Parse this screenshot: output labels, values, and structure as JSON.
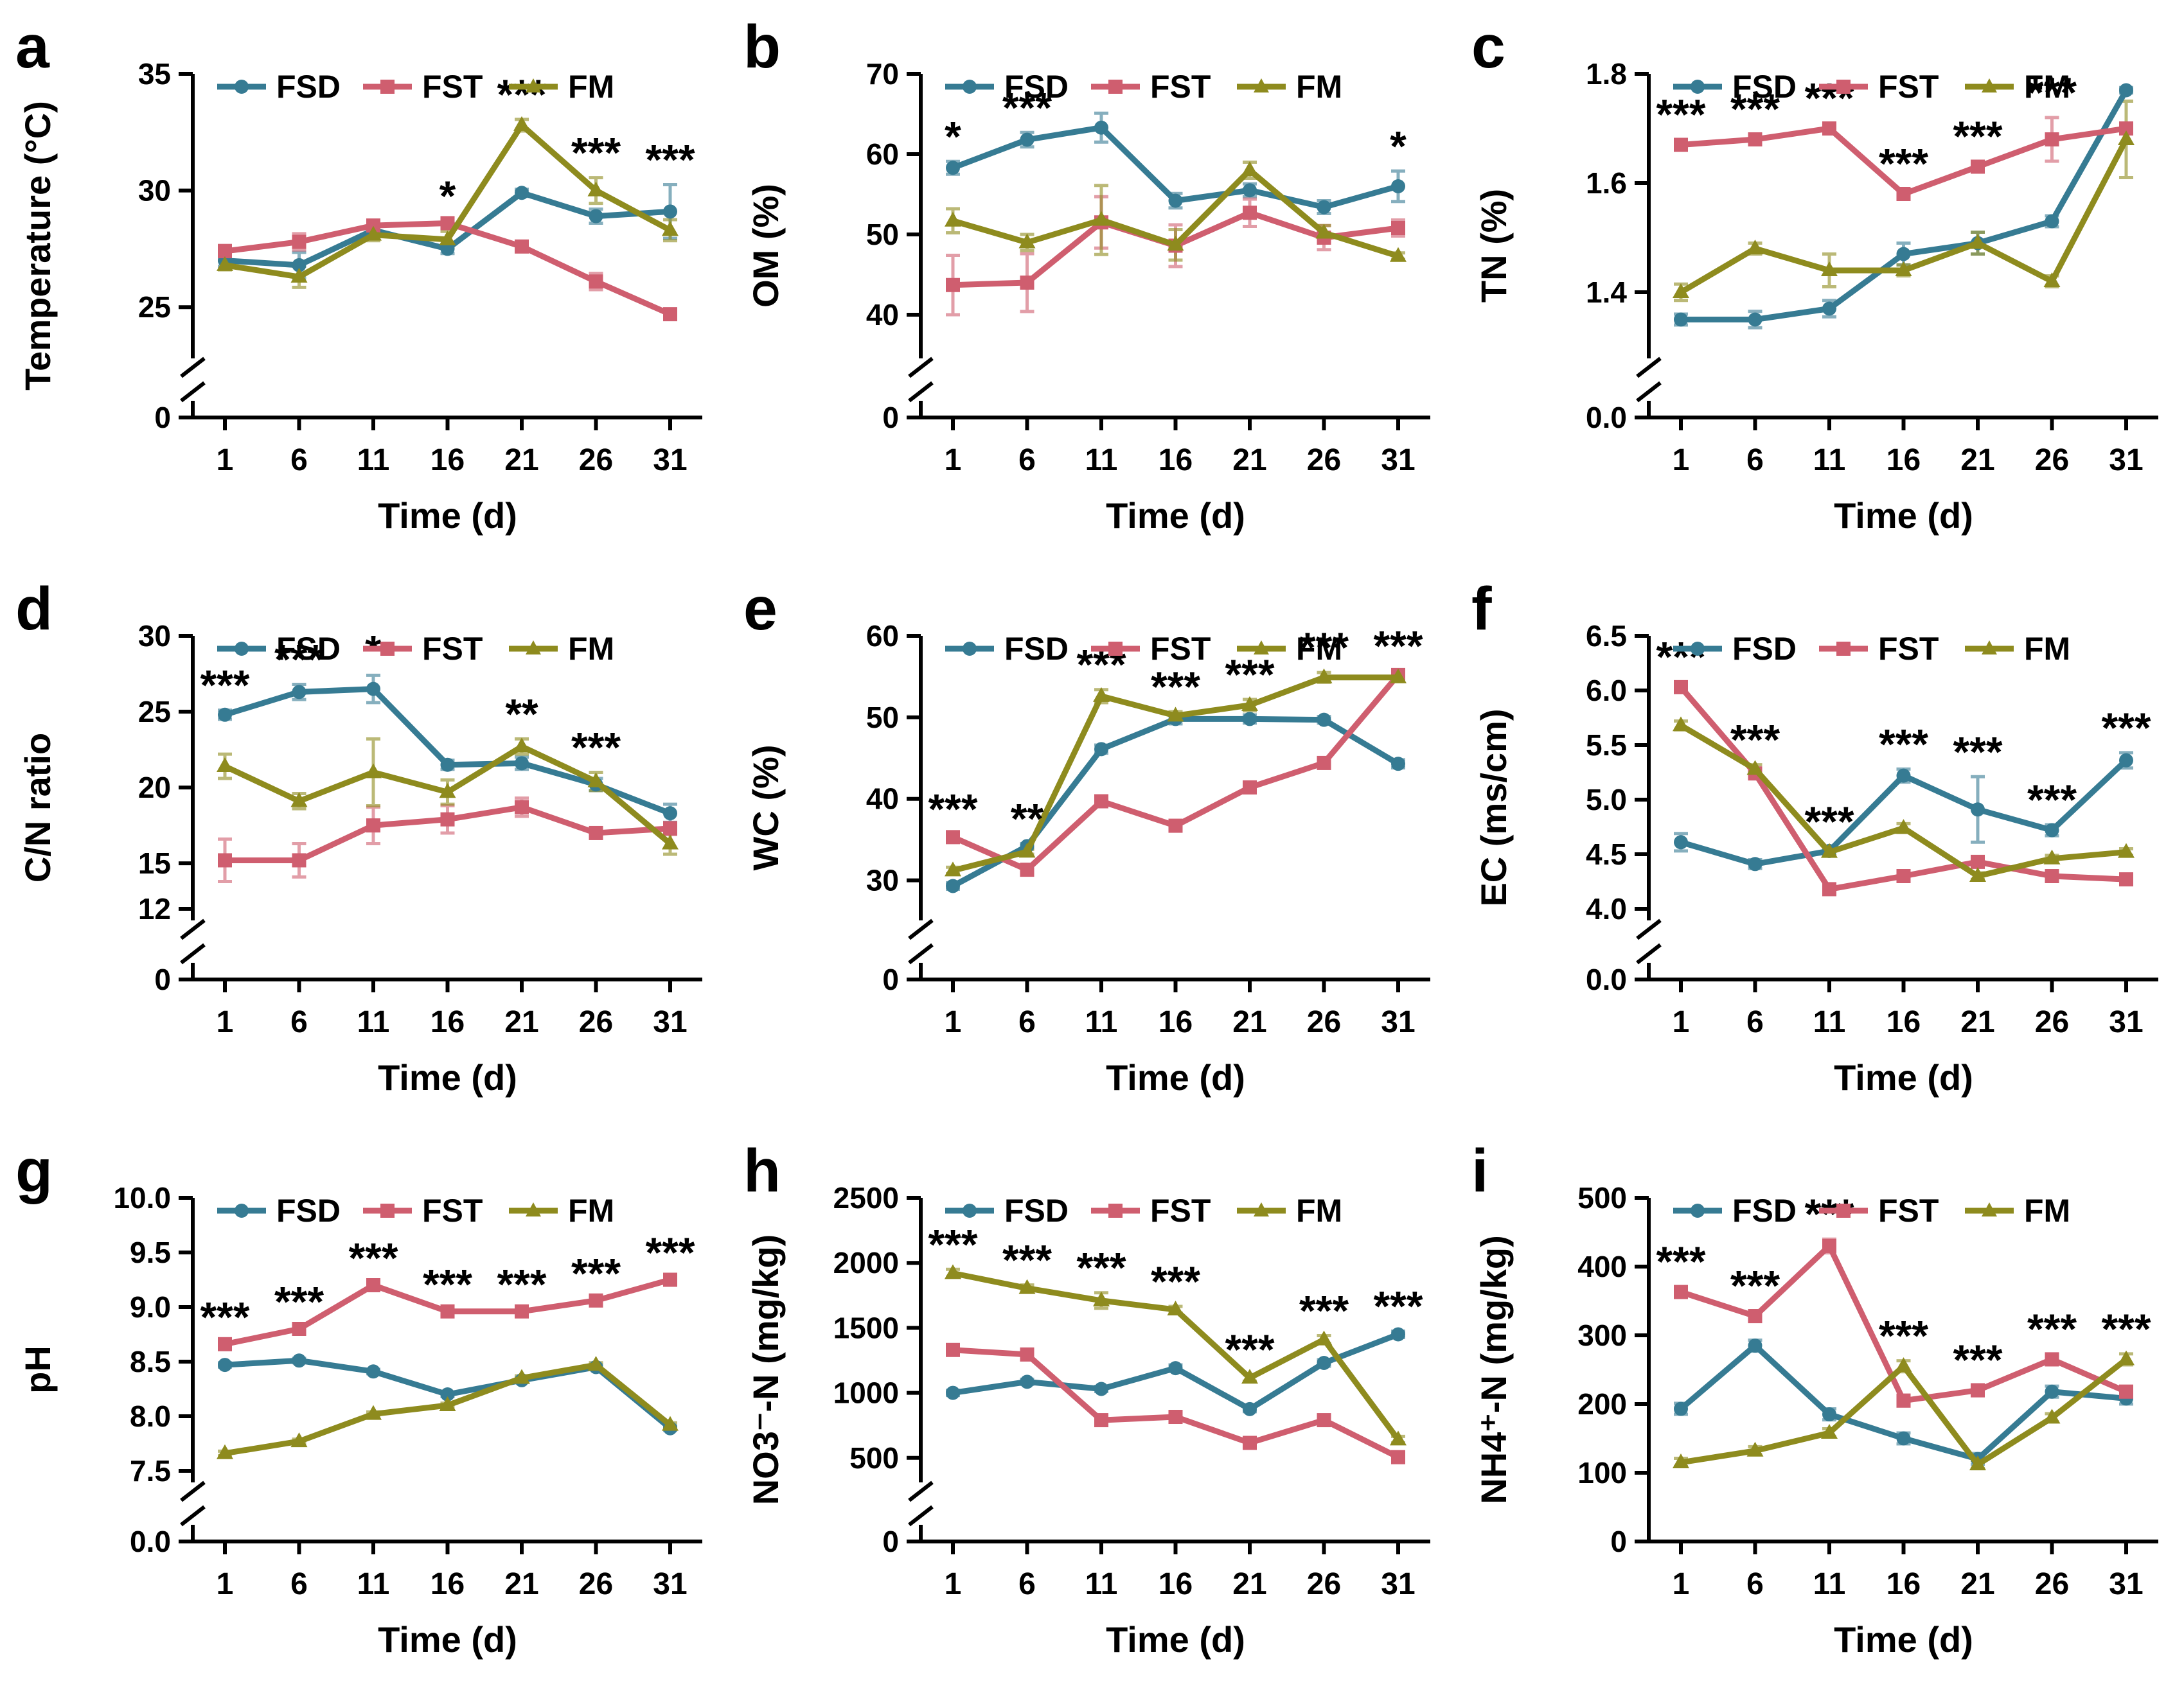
{
  "figure": {
    "xlabel": "Time (d)",
    "x_values": [
      1,
      6,
      11,
      16,
      21,
      26,
      31
    ],
    "x_categories": [
      "1",
      "6",
      "11",
      "16",
      "21",
      "26",
      "31"
    ],
    "legend": [
      "FSD",
      "FST",
      "FM"
    ],
    "colors": {
      "FSD": "#367b93",
      "FST": "#cf5e6f",
      "FM": "#8e8b1e"
    },
    "axis_color": "#000000",
    "sig_color": "#000000"
  },
  "chart_data": [
    {
      "panel": "a",
      "type": "line",
      "ylabel": "Temperature (°C)",
      "xlabel": "Time (d)",
      "y_axis": {
        "broken": true,
        "bottom_label": "0",
        "main_min": 23.3,
        "main_max": 35,
        "ticks": [
          {
            "v": 25,
            "label": "25"
          },
          {
            "v": 30,
            "label": "30"
          },
          {
            "v": 35,
            "label": "35"
          }
        ]
      },
      "series": [
        {
          "name": "FSD",
          "marker": "circle",
          "values": [
            27.0,
            26.8,
            28.3,
            27.5,
            29.9,
            28.9,
            29.1
          ],
          "err": [
            0.25,
            0.55,
            0.3,
            0.2,
            0.15,
            0.3,
            1.15
          ]
        },
        {
          "name": "FST",
          "marker": "square",
          "values": [
            27.4,
            27.8,
            28.5,
            28.6,
            27.6,
            26.1,
            24.7
          ],
          "err": [
            0.25,
            0.35,
            0.2,
            0.1,
            0.1,
            0.35,
            0.15
          ]
        },
        {
          "name": "FM",
          "marker": "triangle",
          "values": [
            26.8,
            26.3,
            28.1,
            27.9,
            32.8,
            30.0,
            28.3
          ],
          "err": [
            0.2,
            0.45,
            0.25,
            0.35,
            0.25,
            0.55,
            0.45
          ]
        }
      ],
      "sig": [
        "",
        "",
        "",
        "*",
        "***",
        "***",
        "***"
      ]
    },
    {
      "panel": "b",
      "type": "line",
      "ylabel": "OM (%)",
      "xlabel": "Time (d)",
      "y_axis": {
        "broken": true,
        "bottom_label": "0",
        "main_min": 36,
        "main_max": 70,
        "ticks": [
          {
            "v": 40,
            "label": "40"
          },
          {
            "v": 50,
            "label": "50"
          },
          {
            "v": 60,
            "label": "60"
          },
          {
            "v": 70,
            "label": "70"
          }
        ]
      },
      "series": [
        {
          "name": "FSD",
          "marker": "circle",
          "values": [
            58.3,
            61.8,
            63.3,
            54.2,
            55.5,
            53.4,
            56.0
          ],
          "err": [
            0.8,
            0.9,
            1.8,
            0.9,
            0.8,
            0.8,
            1.9
          ]
        },
        {
          "name": "FST",
          "marker": "square",
          "values": [
            43.7,
            44.0,
            51.5,
            48.6,
            52.7,
            49.6,
            50.8
          ],
          "err": [
            3.7,
            3.6,
            3.2,
            2.6,
            1.7,
            1.5,
            1.0
          ]
        },
        {
          "name": "FM",
          "marker": "triangle",
          "values": [
            51.7,
            49.0,
            51.8,
            48.7,
            58.0,
            50.2,
            47.3
          ],
          "err": [
            1.5,
            1.0,
            4.3,
            1.9,
            1.0,
            0.9,
            0.4
          ]
        }
      ],
      "sig": [
        "*",
        "***",
        "",
        "",
        "",
        "",
        "*"
      ]
    },
    {
      "panel": "c",
      "type": "line",
      "ylabel": "TN (%)",
      "xlabel": "Time (d)",
      "y_axis": {
        "broken": true,
        "bottom_label": "0.0",
        "main_min": 1.3,
        "main_max": 1.8,
        "ticks": [
          {
            "v": 1.4,
            "label": "1.4"
          },
          {
            "v": 1.6,
            "label": "1.6"
          },
          {
            "v": 1.8,
            "label": "1.8"
          }
        ]
      },
      "series": [
        {
          "name": "FSD",
          "marker": "circle",
          "values": [
            1.35,
            1.35,
            1.37,
            1.47,
            1.49,
            1.53,
            1.77
          ],
          "err": [
            0.01,
            0.015,
            0.015,
            0.02,
            0.02,
            0.01,
            0.005
          ]
        },
        {
          "name": "FST",
          "marker": "square",
          "values": [
            1.67,
            1.68,
            1.7,
            1.58,
            1.63,
            1.68,
            1.7
          ],
          "err": [
            0.01,
            0.01,
            0.01,
            0.01,
            0.01,
            0.04,
            0.01
          ]
        },
        {
          "name": "FM",
          "marker": "triangle",
          "values": [
            1.4,
            1.48,
            1.44,
            1.44,
            1.49,
            1.42,
            1.68
          ],
          "err": [
            0.015,
            0.01,
            0.03,
            0.01,
            0.02,
            0.01,
            0.07
          ]
        }
      ],
      "sig": [
        "***",
        "***",
        "***",
        "***",
        "***",
        "***",
        ""
      ]
    },
    {
      "panel": "d",
      "type": "line",
      "ylabel": "C/N ratio",
      "xlabel": "Time (d)",
      "y_axis": {
        "broken": true,
        "bottom_label": "0",
        "main_min": 12,
        "main_max": 30,
        "ticks": [
          {
            "v": 12,
            "label": "12"
          },
          {
            "v": 15,
            "label": "15"
          },
          {
            "v": 20,
            "label": "20"
          },
          {
            "v": 25,
            "label": "25"
          },
          {
            "v": 30,
            "label": "30"
          }
        ]
      },
      "series": [
        {
          "name": "FSD",
          "marker": "circle",
          "values": [
            24.8,
            26.3,
            26.5,
            21.5,
            21.6,
            20.2,
            18.3
          ],
          "err": [
            0.3,
            0.5,
            0.9,
            0.3,
            0.4,
            0.4,
            0.6
          ]
        },
        {
          "name": "FST",
          "marker": "square",
          "values": [
            15.2,
            15.2,
            17.5,
            17.9,
            18.7,
            17.0,
            17.3
          ],
          "err": [
            1.4,
            1.1,
            1.2,
            0.9,
            0.6,
            0.3,
            0.4
          ]
        },
        {
          "name": "FM",
          "marker": "triangle",
          "values": [
            21.4,
            19.1,
            21.0,
            19.7,
            22.7,
            20.4,
            16.3
          ],
          "err": [
            0.8,
            0.5,
            2.2,
            0.8,
            0.5,
            0.6,
            0.7
          ]
        }
      ],
      "sig": [
        "***",
        "***",
        "*",
        "",
        "**",
        "***",
        ""
      ]
    },
    {
      "panel": "e",
      "type": "line",
      "ylabel": "WC (%)",
      "xlabel": "Time (d)",
      "y_axis": {
        "broken": true,
        "bottom_label": "0",
        "main_min": 26.5,
        "main_max": 60,
        "ticks": [
          {
            "v": 30,
            "label": "30"
          },
          {
            "v": 40,
            "label": "40"
          },
          {
            "v": 50,
            "label": "50"
          },
          {
            "v": 60,
            "label": "60"
          }
        ]
      },
      "series": [
        {
          "name": "FSD",
          "marker": "circle",
          "values": [
            29.3,
            34.2,
            46.1,
            49.8,
            49.8,
            49.7,
            44.3
          ],
          "err": [
            0.4,
            0.3,
            0.5,
            0.6,
            0.5,
            0.4,
            0.5
          ]
        },
        {
          "name": "FST",
          "marker": "square",
          "values": [
            35.3,
            31.3,
            39.7,
            36.7,
            41.4,
            44.4,
            55.2
          ],
          "err": [
            0.4,
            0.4,
            0.4,
            0.4,
            0.4,
            0.4,
            0.5
          ]
        },
        {
          "name": "FM",
          "marker": "triangle",
          "values": [
            31.2,
            33.5,
            52.6,
            50.2,
            51.5,
            54.9,
            54.9
          ],
          "err": [
            0.4,
            0.3,
            0.8,
            0.5,
            0.7,
            0.6,
            0.4
          ]
        }
      ],
      "sig": [
        "***",
        "**",
        "***",
        "***",
        "***",
        "***",
        "***"
      ]
    },
    {
      "panel": "f",
      "type": "line",
      "ylabel": "EC (ms/cm)",
      "xlabel": "Time (d)",
      "y_axis": {
        "broken": true,
        "bottom_label": "0.0",
        "main_min": 4.0,
        "main_max": 6.5,
        "ticks": [
          {
            "v": 4.0,
            "label": "4.0"
          },
          {
            "v": 4.5,
            "label": "4.5"
          },
          {
            "v": 5.0,
            "label": "5.0"
          },
          {
            "v": 5.5,
            "label": "5.5"
          },
          {
            "v": 6.0,
            "label": "6.0"
          },
          {
            "v": 6.5,
            "label": "6.5"
          }
        ]
      },
      "series": [
        {
          "name": "FSD",
          "marker": "circle",
          "values": [
            4.61,
            4.41,
            4.53,
            5.22,
            4.91,
            4.72,
            5.36
          ],
          "err": [
            0.08,
            0.04,
            0.04,
            0.06,
            0.3,
            0.05,
            0.07
          ]
        },
        {
          "name": "FST",
          "marker": "square",
          "values": [
            6.03,
            5.24,
            4.18,
            4.3,
            4.43,
            4.3,
            4.27
          ],
          "err": [
            0.05,
            0.04,
            0.03,
            0.03,
            0.03,
            0.03,
            0.03
          ]
        },
        {
          "name": "FM",
          "marker": "triangle",
          "values": [
            5.68,
            5.28,
            4.52,
            4.74,
            4.3,
            4.46,
            4.52
          ],
          "err": [
            0.04,
            0.04,
            0.03,
            0.04,
            0.03,
            0.03,
            0.03
          ]
        }
      ],
      "sig": [
        "***",
        "***",
        "***",
        "***",
        "***",
        "***",
        "***"
      ]
    },
    {
      "panel": "g",
      "type": "line",
      "ylabel": "pH",
      "xlabel": "Time (d)",
      "y_axis": {
        "broken": true,
        "bottom_label": "0.0",
        "main_min": 7.5,
        "main_max": 10.0,
        "ticks": [
          {
            "v": 7.5,
            "label": "7.5"
          },
          {
            "v": 8.0,
            "label": "8.0"
          },
          {
            "v": 8.5,
            "label": "8.5"
          },
          {
            "v": 9.0,
            "label": "9.0"
          },
          {
            "v": 9.5,
            "label": "9.5"
          },
          {
            "v": 10.0,
            "label": "10.0"
          }
        ]
      },
      "series": [
        {
          "name": "FSD",
          "marker": "circle",
          "values": [
            8.47,
            8.51,
            8.41,
            8.2,
            8.33,
            8.45,
            7.89
          ],
          "err": [
            0.02,
            0.02,
            0.02,
            0.02,
            0.02,
            0.02,
            0.02
          ]
        },
        {
          "name": "FST",
          "marker": "square",
          "values": [
            8.66,
            8.8,
            9.2,
            8.96,
            8.96,
            9.06,
            9.25
          ],
          "err": [
            0.02,
            0.02,
            0.02,
            0.02,
            0.02,
            0.02,
            0.02
          ]
        },
        {
          "name": "FM",
          "marker": "triangle",
          "values": [
            7.66,
            7.77,
            8.02,
            8.1,
            8.35,
            8.47,
            7.92
          ],
          "err": [
            0.02,
            0.02,
            0.02,
            0.02,
            0.02,
            0.02,
            0.02
          ]
        }
      ],
      "sig": [
        "***",
        "***",
        "***",
        "***",
        "***",
        "***",
        "***"
      ]
    },
    {
      "panel": "h",
      "type": "line",
      "ylabel": "NO3⁻-N (mg/kg)",
      "xlabel": "Time (d)",
      "y_axis": {
        "broken": true,
        "bottom_label": "0",
        "main_min": 400,
        "main_max": 2500,
        "ticks": [
          {
            "v": 500,
            "label": "500"
          },
          {
            "v": 1000,
            "label": "1000"
          },
          {
            "v": 1500,
            "label": "1500"
          },
          {
            "v": 2000,
            "label": "2000"
          },
          {
            "v": 2500,
            "label": "2500"
          }
        ]
      },
      "series": [
        {
          "name": "FSD",
          "marker": "circle",
          "values": [
            1000,
            1085,
            1030,
            1190,
            875,
            1230,
            1450
          ],
          "err": [
            20,
            20,
            20,
            25,
            20,
            25,
            25
          ]
        },
        {
          "name": "FST",
          "marker": "square",
          "values": [
            1330,
            1295,
            790,
            815,
            615,
            790,
            505
          ],
          "err": [
            25,
            25,
            20,
            20,
            20,
            20,
            20
          ]
        },
        {
          "name": "FM",
          "marker": "triangle",
          "values": [
            1920,
            1805,
            1710,
            1640,
            1115,
            1410,
            640
          ],
          "err": [
            30,
            25,
            60,
            25,
            25,
            30,
            25
          ]
        }
      ],
      "sig": [
        "***",
        "***",
        "***",
        "***",
        "***",
        "***",
        "***"
      ]
    },
    {
      "panel": "i",
      "type": "line",
      "ylabel": "NH4⁺-N (mg/kg)",
      "xlabel": "Time (d)",
      "y_axis": {
        "broken": false,
        "bottom_label": null,
        "main_min": 0,
        "main_max": 500,
        "ticks": [
          {
            "v": 0,
            "label": "0"
          },
          {
            "v": 100,
            "label": "100"
          },
          {
            "v": 200,
            "label": "200"
          },
          {
            "v": 300,
            "label": "300"
          },
          {
            "v": 400,
            "label": "400"
          },
          {
            "v": 500,
            "label": "500"
          }
        ]
      },
      "series": [
        {
          "name": "FSD",
          "marker": "circle",
          "values": [
            193,
            285,
            185,
            150,
            120,
            218,
            208
          ],
          "err": [
            8,
            8,
            8,
            8,
            8,
            8,
            8
          ]
        },
        {
          "name": "FST",
          "marker": "square",
          "values": [
            363,
            328,
            430,
            205,
            220,
            265,
            218
          ],
          "err": [
            8,
            8,
            10,
            8,
            8,
            8,
            8
          ]
        },
        {
          "name": "FM",
          "marker": "triangle",
          "values": [
            115,
            132,
            158,
            255,
            112,
            180,
            265
          ],
          "err": [
            6,
            6,
            6,
            8,
            6,
            6,
            8
          ]
        }
      ],
      "sig": [
        "***",
        "***",
        "***",
        "***",
        "***",
        "***",
        "***"
      ]
    }
  ]
}
